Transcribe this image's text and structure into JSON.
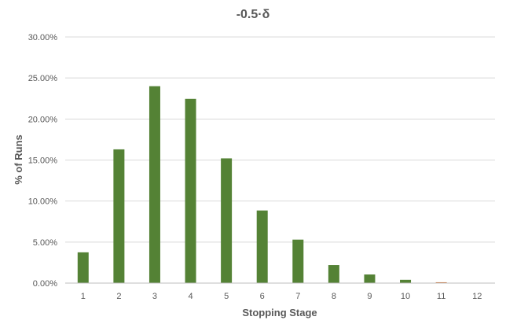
{
  "chart_data": {
    "type": "bar",
    "title": "-0.5·δ",
    "xlabel": "Stopping Stage",
    "ylabel": "% of Runs",
    "categories": [
      "1",
      "2",
      "3",
      "4",
      "5",
      "6",
      "7",
      "8",
      "9",
      "10",
      "11",
      "12"
    ],
    "values": [
      3.75,
      16.3,
      24.0,
      22.45,
      15.2,
      8.85,
      5.3,
      2.2,
      1.05,
      0.4,
      0.1,
      0.0
    ],
    "ylim": [
      0,
      30
    ],
    "yticks": [
      "0.00%",
      "5.00%",
      "10.00%",
      "15.00%",
      "20.00%",
      "25.00%",
      "30.00%"
    ],
    "grid": true,
    "legend": "none",
    "bar_color": "#548235",
    "highlight_bar_color": "#c55a11",
    "highlight_index": 10,
    "grid_color": "#d9d9d9",
    "axis_color": "#bfbfbf",
    "text_color": "#595959"
  }
}
